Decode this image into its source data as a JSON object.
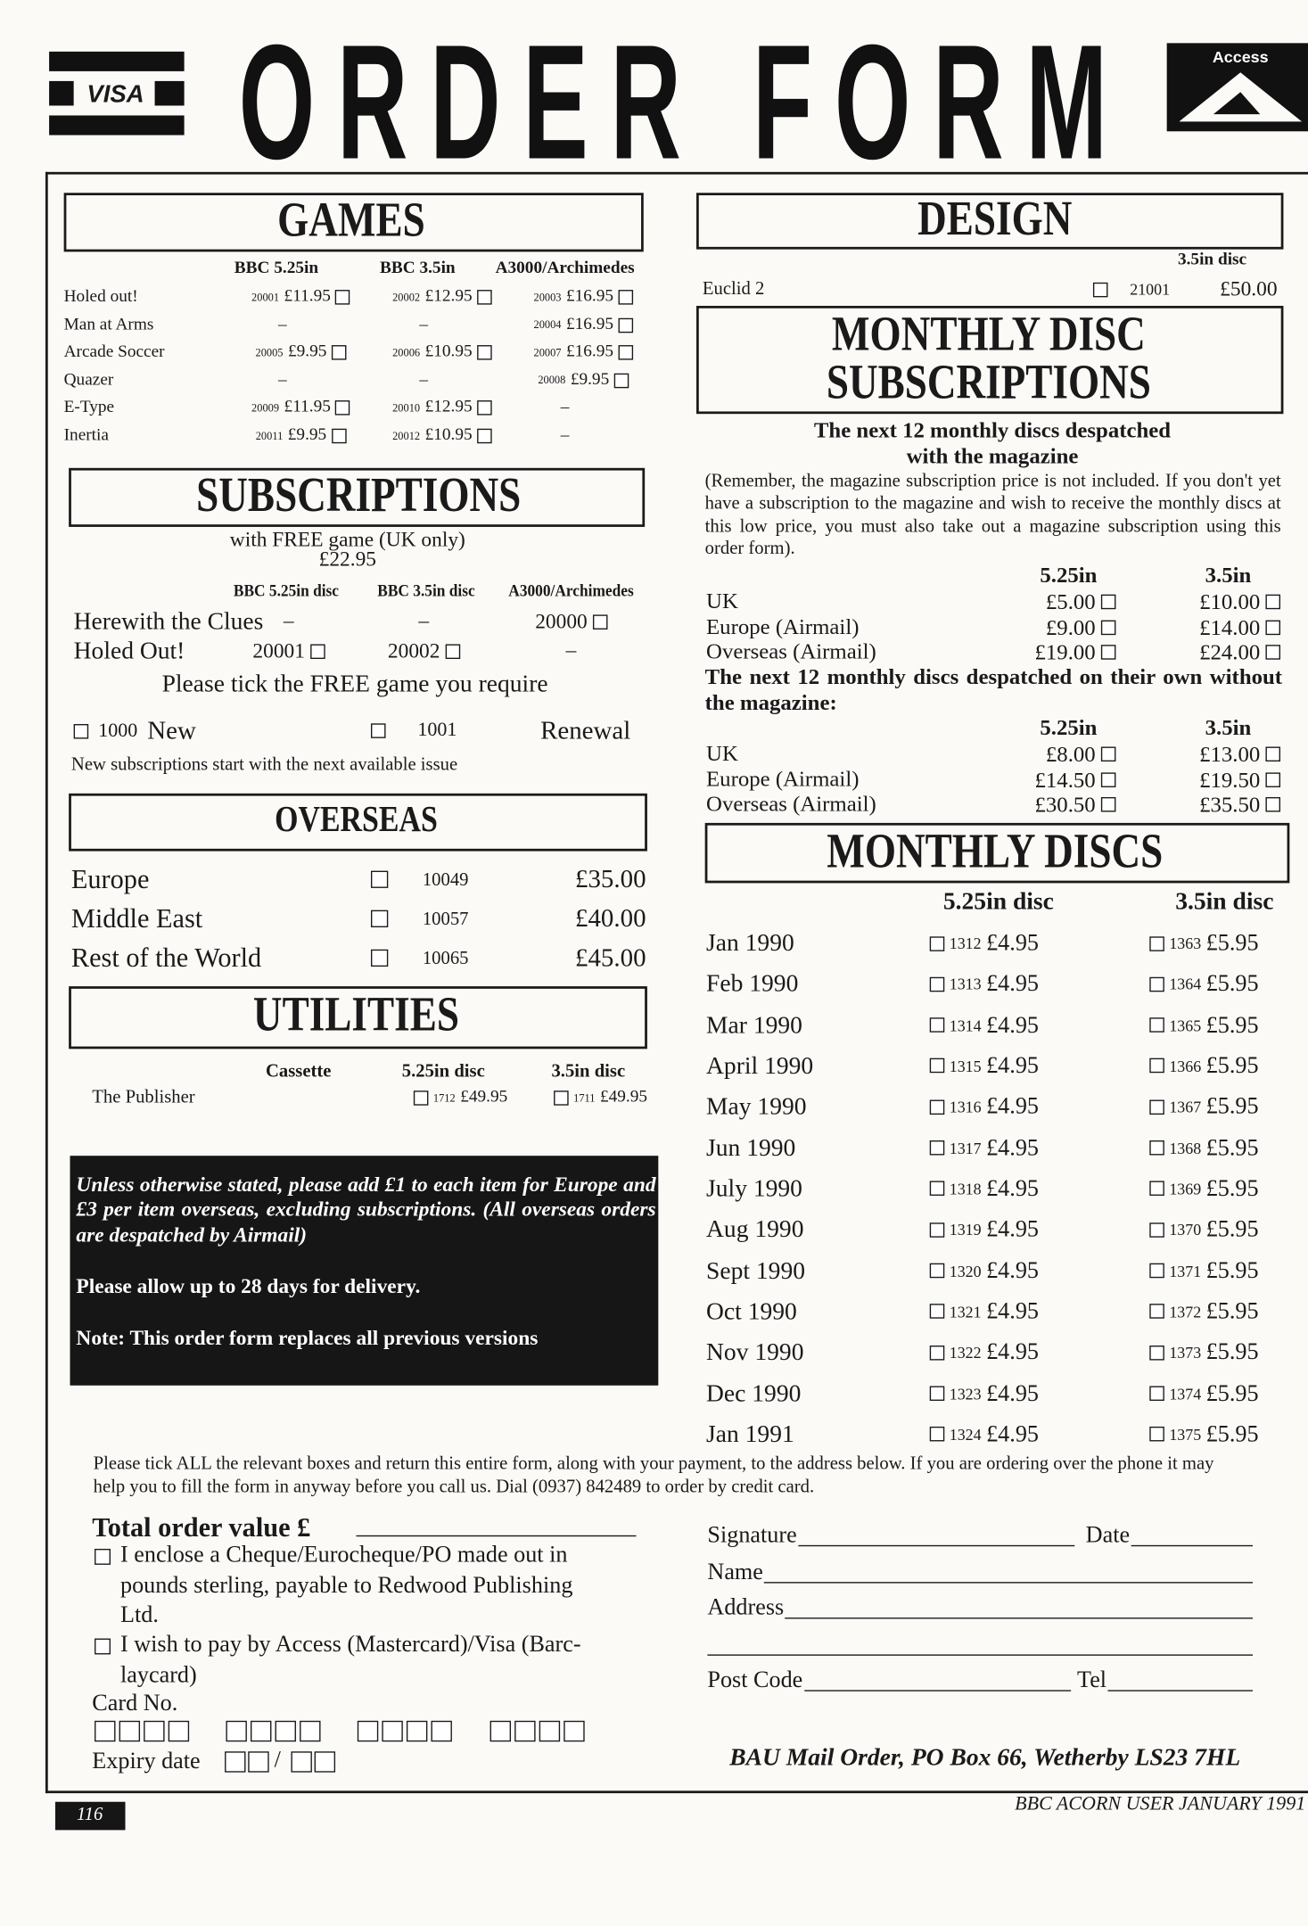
{
  "header": {
    "title": "ORDER FORM",
    "visa": "VISA",
    "access": "Access"
  },
  "games": {
    "title": "GAMES",
    "columns": [
      "BBC 5.25in",
      "BBC 3.5in",
      "A3000/Archimedes"
    ],
    "rows": [
      {
        "name": "Holed out!",
        "cells": [
          {
            "code": "20001",
            "price": "£11.95"
          },
          {
            "code": "20002",
            "price": "£12.95"
          },
          {
            "code": "20003",
            "price": "£16.95"
          }
        ]
      },
      {
        "name": "Man at Arms",
        "cells": [
          "–",
          "–",
          {
            "code": "20004",
            "price": "£16.95"
          }
        ]
      },
      {
        "name": "Arcade Soccer",
        "cells": [
          {
            "code": "20005",
            "price": "£9.95"
          },
          {
            "code": "20006",
            "price": "£10.95"
          },
          {
            "code": "20007",
            "price": "£16.95"
          }
        ]
      },
      {
        "name": "Quazer",
        "cells": [
          "–",
          "–",
          {
            "code": "20008",
            "price": "£9.95"
          }
        ]
      },
      {
        "name": "E-Type",
        "cells": [
          {
            "code": "20009",
            "price": "£11.95"
          },
          {
            "code": "20010",
            "price": "£12.95"
          },
          "–"
        ]
      },
      {
        "name": "Inertia",
        "cells": [
          {
            "code": "20011",
            "price": "£9.95"
          },
          {
            "code": "20012",
            "price": "£10.95"
          },
          "–"
        ]
      }
    ]
  },
  "subscriptions": {
    "title": "SUBSCRIPTIONS",
    "subtitle": "with FREE game (UK only)",
    "price": "£22.95",
    "columns": [
      "BBC 5.25in disc",
      "BBC 3.5in disc",
      "A3000/Archimedes"
    ],
    "rows": [
      {
        "name": "Herewith the Clues",
        "cells": [
          "–",
          "–",
          "20000"
        ]
      },
      {
        "name": "Holed Out!",
        "cells": [
          "20001",
          "20002",
          "–"
        ]
      }
    ],
    "instruction": "Please tick the FREE game you require",
    "options": [
      {
        "code": "1000",
        "label": "New"
      },
      {
        "code": "1001",
        "label": "Renewal"
      }
    ],
    "note": "New subscriptions start with the next available issue"
  },
  "overseas": {
    "title": "OVERSEAS",
    "rows": [
      {
        "name": "Europe",
        "code": "10049",
        "price": "£35.00"
      },
      {
        "name": "Middle East",
        "code": "10057",
        "price": "£40.00"
      },
      {
        "name": "Rest of the World",
        "code": "10065",
        "price": "£45.00"
      }
    ]
  },
  "utilities": {
    "title": "UTILITIES",
    "columns": [
      "Cassette",
      "5.25in disc",
      "3.5in disc"
    ],
    "rows": [
      {
        "name": "The Publisher",
        "cells": [
          null,
          {
            "code": "1712",
            "price": "£49.95"
          },
          {
            "code": "1711",
            "price": "£49.95"
          }
        ]
      }
    ]
  },
  "notice": {
    "italic": "Unless otherwise stated, please add £1 to each item for Europe and £3 per item overseas, excluding subscriptions. (All overseas orders are despatched by Airmail)",
    "delivery": "Please allow up to 28 days for delivery.",
    "replaces": "Note: This order form replaces all previous versions"
  },
  "design": {
    "title": "DESIGN",
    "column": "3.5in disc",
    "rows": [
      {
        "name": "Euclid 2",
        "code": "21001",
        "price": "£50.00"
      }
    ]
  },
  "monthly_subscriptions": {
    "title_lines": [
      "MONTHLY DISC",
      "SUBSCRIPTIONS"
    ],
    "heading": [
      "The next 12 monthly discs despatched",
      "with the magazine"
    ],
    "remark": "(Remember, the magazine subscription price is not included. If you don't yet have a subscription to the magazine and wish to receive the monthly discs at this low price, you must also take out a magazine subscription using this order form).",
    "columns": [
      "5.25in",
      "3.5in"
    ],
    "rows": [
      {
        "name": "UK",
        "prices": [
          "£5.00",
          "£10.00"
        ]
      },
      {
        "name": "Europe (Airmail)",
        "prices": [
          "£9.00",
          "£14.00"
        ]
      },
      {
        "name": "Overseas (Airmail)",
        "prices": [
          "£19.00",
          "£24.00"
        ]
      }
    ],
    "heading2": "The next 12 monthly discs despatched on their own without the magazine:",
    "rows2": [
      {
        "name": "UK",
        "prices": [
          "£8.00",
          "£13.00"
        ]
      },
      {
        "name": "Europe (Airmail)",
        "prices": [
          "£14.50",
          "£19.50"
        ]
      },
      {
        "name": "Overseas (Airmail)",
        "prices": [
          "£30.50",
          "£35.50"
        ]
      }
    ]
  },
  "monthly_discs": {
    "title": "MONTHLY DISCS",
    "columns": [
      "5.25in disc",
      "3.5in disc"
    ],
    "rows": [
      {
        "month": "Jan 1990",
        "cells": [
          {
            "code": "1312",
            "price": "£4.95"
          },
          {
            "code": "1363",
            "price": "£5.95"
          }
        ]
      },
      {
        "month": "Feb 1990",
        "cells": [
          {
            "code": "1313",
            "price": "£4.95"
          },
          {
            "code": "1364",
            "price": "£5.95"
          }
        ]
      },
      {
        "month": "Mar 1990",
        "cells": [
          {
            "code": "1314",
            "price": "£4.95"
          },
          {
            "code": "1365",
            "price": "£5.95"
          }
        ]
      },
      {
        "month": "April 1990",
        "cells": [
          {
            "code": "1315",
            "price": "£4.95"
          },
          {
            "code": "1366",
            "price": "£5.95"
          }
        ]
      },
      {
        "month": "May 1990",
        "cells": [
          {
            "code": "1316",
            "price": "£4.95"
          },
          {
            "code": "1367",
            "price": "£5.95"
          }
        ]
      },
      {
        "month": "Jun 1990",
        "cells": [
          {
            "code": "1317",
            "price": "£4.95"
          },
          {
            "code": "1368",
            "price": "£5.95"
          }
        ]
      },
      {
        "month": "July 1990",
        "cells": [
          {
            "code": "1318",
            "price": "£4.95"
          },
          {
            "code": "1369",
            "price": "£5.95"
          }
        ]
      },
      {
        "month": "Aug 1990",
        "cells": [
          {
            "code": "1319",
            "price": "£4.95"
          },
          {
            "code": "1370",
            "price": "£5.95"
          }
        ]
      },
      {
        "month": "Sept 1990",
        "cells": [
          {
            "code": "1320",
            "price": "£4.95"
          },
          {
            "code": "1371",
            "price": "£5.95"
          }
        ]
      },
      {
        "month": "Oct 1990",
        "cells": [
          {
            "code": "1321",
            "price": "£4.95"
          },
          {
            "code": "1372",
            "price": "£5.95"
          }
        ]
      },
      {
        "month": "Nov 1990",
        "cells": [
          {
            "code": "1322",
            "price": "£4.95"
          },
          {
            "code": "1373",
            "price": "£5.95"
          }
        ]
      },
      {
        "month": "Dec 1990",
        "cells": [
          {
            "code": "1323",
            "price": "£4.95"
          },
          {
            "code": "1374",
            "price": "£5.95"
          }
        ]
      },
      {
        "month": "Jan 1991",
        "cells": [
          {
            "code": "1324",
            "price": "£4.95"
          },
          {
            "code": "1375",
            "price": "£5.95"
          }
        ]
      }
    ]
  },
  "footer": {
    "instructions": "Please tick ALL the relevant boxes and return this entire form, along with your payment, to the address below. If you are ordering over the phone it may help you to fill the form in anyway before you call us. Dial (0937) 842489 to order by credit card.",
    "total": "Total order value £",
    "payment_options": [
      [
        "I enclose a Cheque/Eurocheque/PO made out in",
        "pounds sterling, payable to Redwood Publishing",
        "Ltd."
      ],
      [
        "I wish to pay by Access (Mastercard)/Visa (Barc-",
        "laycard)"
      ]
    ],
    "card": "Card No.",
    "expiry": "Expiry date",
    "expiry_separator": "/",
    "fields": {
      "signature": "Signature",
      "date": "Date",
      "name": "Name",
      "address": "Address",
      "post_code": "Post Code",
      "tel": "Tel"
    },
    "mail_address": "BAU Mail Order, PO Box 66, Wetherby LS23 7HL",
    "page": "116",
    "magazine": "BBC ACORN USER JANUARY 1991"
  }
}
